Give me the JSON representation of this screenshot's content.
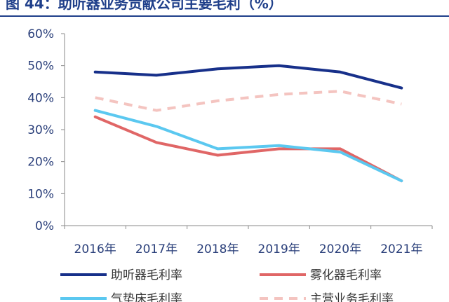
{
  "header": {
    "title": "图 44：助听器业务贡献公司主要毛利（%）"
  },
  "chart_data": {
    "type": "line",
    "title": "图 44：助听器业务贡献公司主要毛利（%）",
    "categories": [
      "2016年",
      "2017年",
      "2018年",
      "2019年",
      "2020年",
      "2021年"
    ],
    "y_ticks": [
      "0%",
      "10%",
      "20%",
      "30%",
      "40%",
      "50%",
      "60%"
    ],
    "ylim": [
      0,
      60
    ],
    "grid": false,
    "legend_position": "bottom",
    "series": [
      {
        "name": "助听器毛利率",
        "values": [
          48,
          47,
          49,
          50,
          48,
          43
        ],
        "color": "#17308a",
        "dash": "solid"
      },
      {
        "name": "雾化器毛利率",
        "values": [
          34,
          26,
          22,
          24,
          24,
          14
        ],
        "color": "#e06666",
        "dash": "solid"
      },
      {
        "name": "气垫床毛利率",
        "values": [
          36,
          31,
          24,
          25,
          23,
          14
        ],
        "color": "#5bc8f0",
        "dash": "solid"
      },
      {
        "name": "主营业务毛利率",
        "values": [
          40,
          36,
          39,
          41,
          42,
          38
        ],
        "color": "#f4c4c0",
        "dash": "dashed"
      }
    ]
  }
}
